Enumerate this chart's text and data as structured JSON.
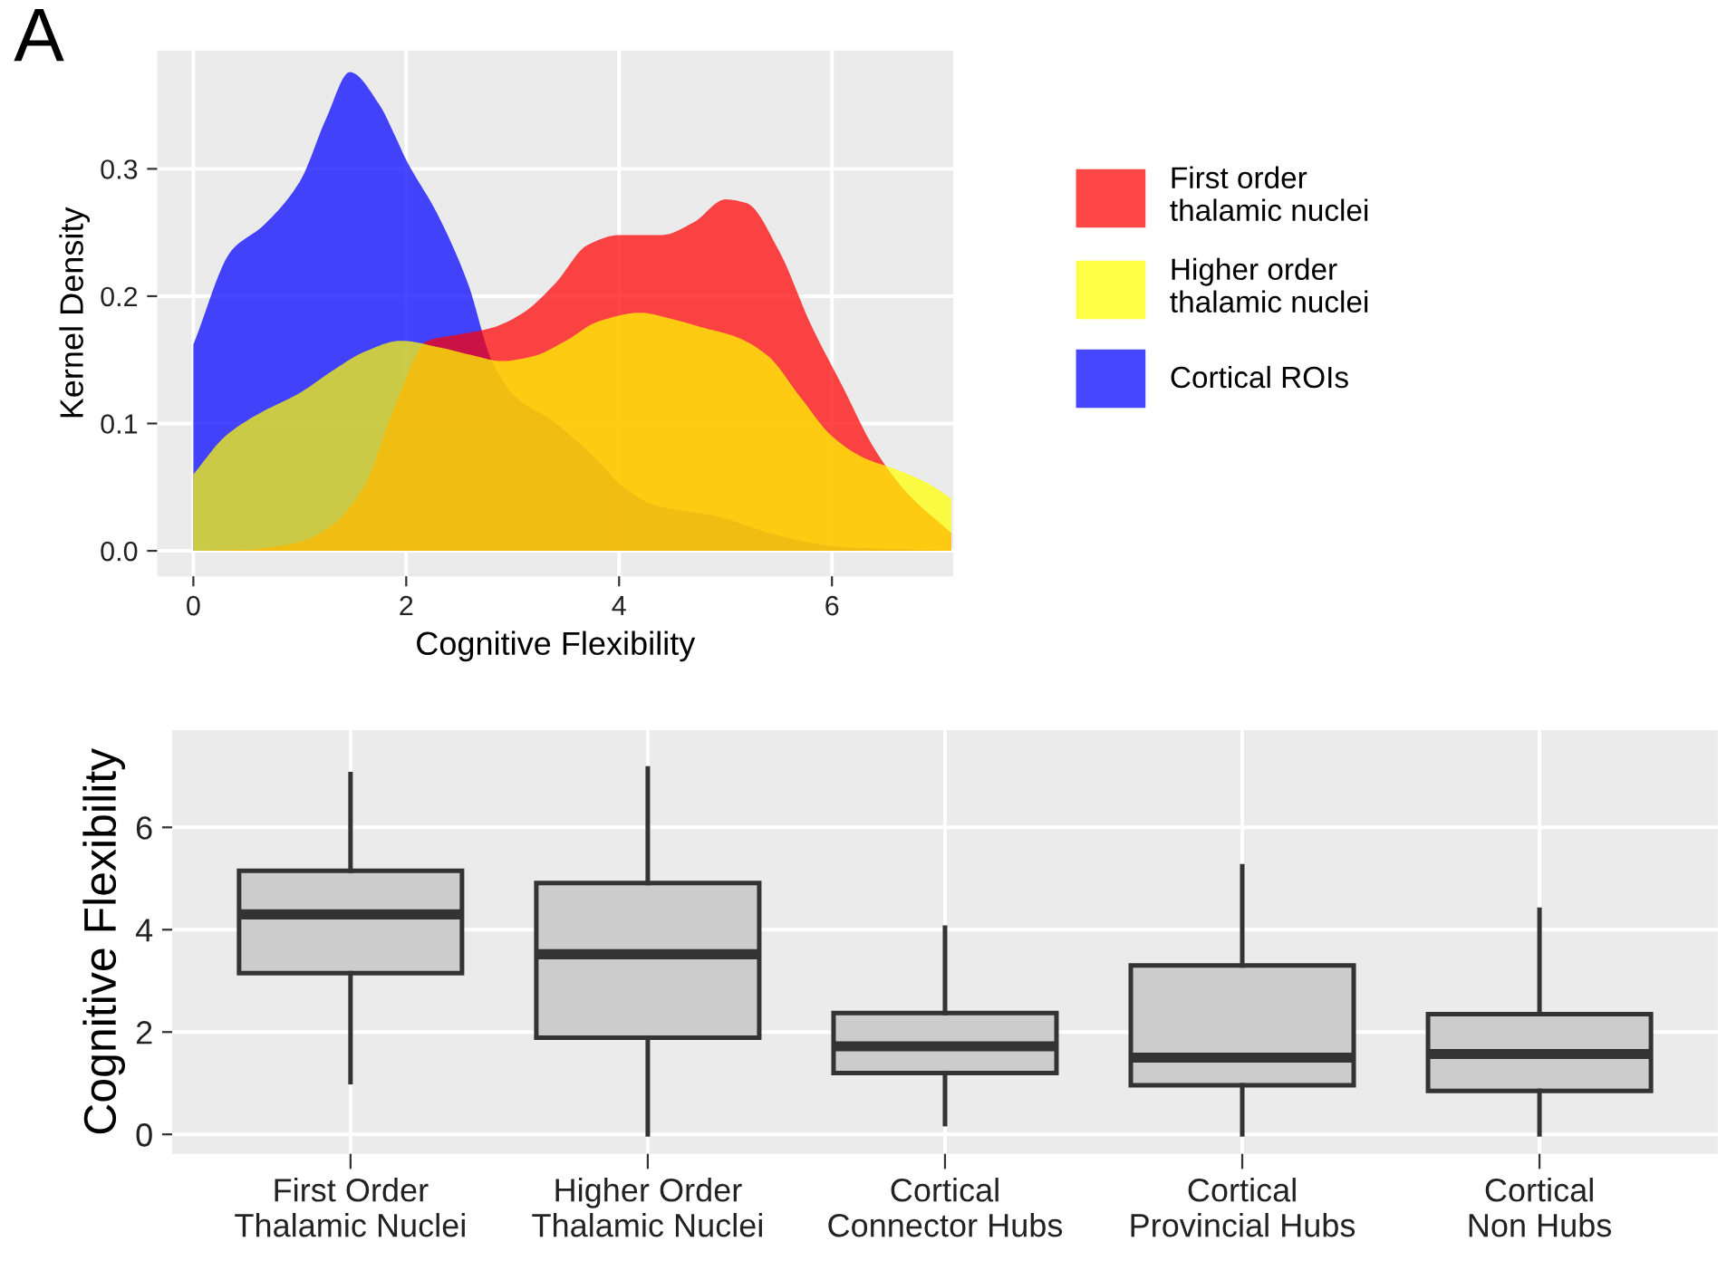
{
  "chart_data": [
    {
      "type": "area",
      "xlabel": "Cognitive Flexibility",
      "ylabel": "Kernel Density",
      "annotations": [
        "A"
      ],
      "xlim": [
        -0.34,
        7.14
      ],
      "ylim": [
        -0.02,
        0.393
      ],
      "xticks": [
        0,
        2,
        4,
        6
      ],
      "yticks": [
        {
          "value": 0,
          "label": "0.0"
        },
        0.1,
        0.2,
        0.3
      ],
      "grid": true,
      "legend": "right",
      "series": [
        {
          "name": "First order\nthalamic nuclei",
          "color": "#ff0000",
          "x": [
            0,
            0.5,
            1.0,
            1.3,
            1.6,
            1.9,
            2.2,
            2.5,
            2.8,
            3.1,
            3.4,
            3.7,
            4.0,
            4.4,
            4.7,
            5.0,
            5.2,
            5.5,
            5.8,
            6.1,
            6.4,
            6.7,
            7.12
          ],
          "values": [
            0.0,
            0.001,
            0.007,
            0.02,
            0.05,
            0.115,
            0.165,
            0.17,
            0.175,
            0.187,
            0.21,
            0.24,
            0.248,
            0.248,
            0.258,
            0.276,
            0.273,
            0.236,
            0.178,
            0.129,
            0.08,
            0.046,
            0.014
          ]
        },
        {
          "name": "Higher order\nthalamic nuclei",
          "color": "#ffff00",
          "x": [
            0,
            0.3,
            0.6,
            1.0,
            1.3,
            1.6,
            1.95,
            2.3,
            2.6,
            2.9,
            3.2,
            3.5,
            3.8,
            4.2,
            4.5,
            4.8,
            5.1,
            5.4,
            5.7,
            6.0,
            6.3,
            6.6,
            6.9,
            7.12
          ],
          "values": [
            0.06,
            0.09,
            0.107,
            0.124,
            0.141,
            0.156,
            0.165,
            0.16,
            0.154,
            0.149,
            0.153,
            0.165,
            0.18,
            0.187,
            0.182,
            0.175,
            0.168,
            0.153,
            0.121,
            0.09,
            0.073,
            0.064,
            0.053,
            0.041
          ]
        },
        {
          "name": "Cortical ROIs",
          "color": "#0000ff",
          "x": [
            0,
            0.36,
            0.65,
            1.0,
            1.25,
            1.47,
            1.75,
            1.9,
            2.0,
            2.29,
            2.58,
            2.81,
            3.05,
            3.34,
            3.75,
            4.04,
            4.33,
            4.92,
            5.5,
            6.09,
            7.14
          ],
          "values": [
            0.162,
            0.236,
            0.255,
            0.29,
            0.34,
            0.376,
            0.35,
            0.325,
            0.307,
            0.265,
            0.21,
            0.148,
            0.119,
            0.104,
            0.075,
            0.05,
            0.036,
            0.027,
            0.012,
            0.003,
            0.0
          ]
        }
      ]
    },
    {
      "type": "box",
      "ylabel": "Cognitive Flexibility",
      "categories": [
        "First Order\nThalamic Nuclei",
        "Higher Order\nThalamic Nuclei",
        "Cortical\nConnector Hubs",
        "Cortical\nProvincial Hubs",
        "Cortical\nNon Hubs"
      ],
      "ylim": [
        -0.38,
        7.9
      ],
      "yticks": [
        0,
        2,
        4,
        6
      ],
      "grid": true,
      "boxes": [
        {
          "low": 1.02,
          "q1": 3.15,
          "median": 4.3,
          "q3": 5.15,
          "high": 7.04
        },
        {
          "low": 0.0,
          "q1": 1.89,
          "median": 3.52,
          "q3": 4.91,
          "high": 7.15
        },
        {
          "low": 0.2,
          "q1": 1.2,
          "median": 1.72,
          "q3": 2.37,
          "high": 4.04
        },
        {
          "low": 0.0,
          "q1": 0.96,
          "median": 1.5,
          "q3": 3.3,
          "high": 5.24
        },
        {
          "low": 0.0,
          "q1": 0.85,
          "median": 1.57,
          "q3": 2.35,
          "high": 4.39
        }
      ]
    }
  ]
}
